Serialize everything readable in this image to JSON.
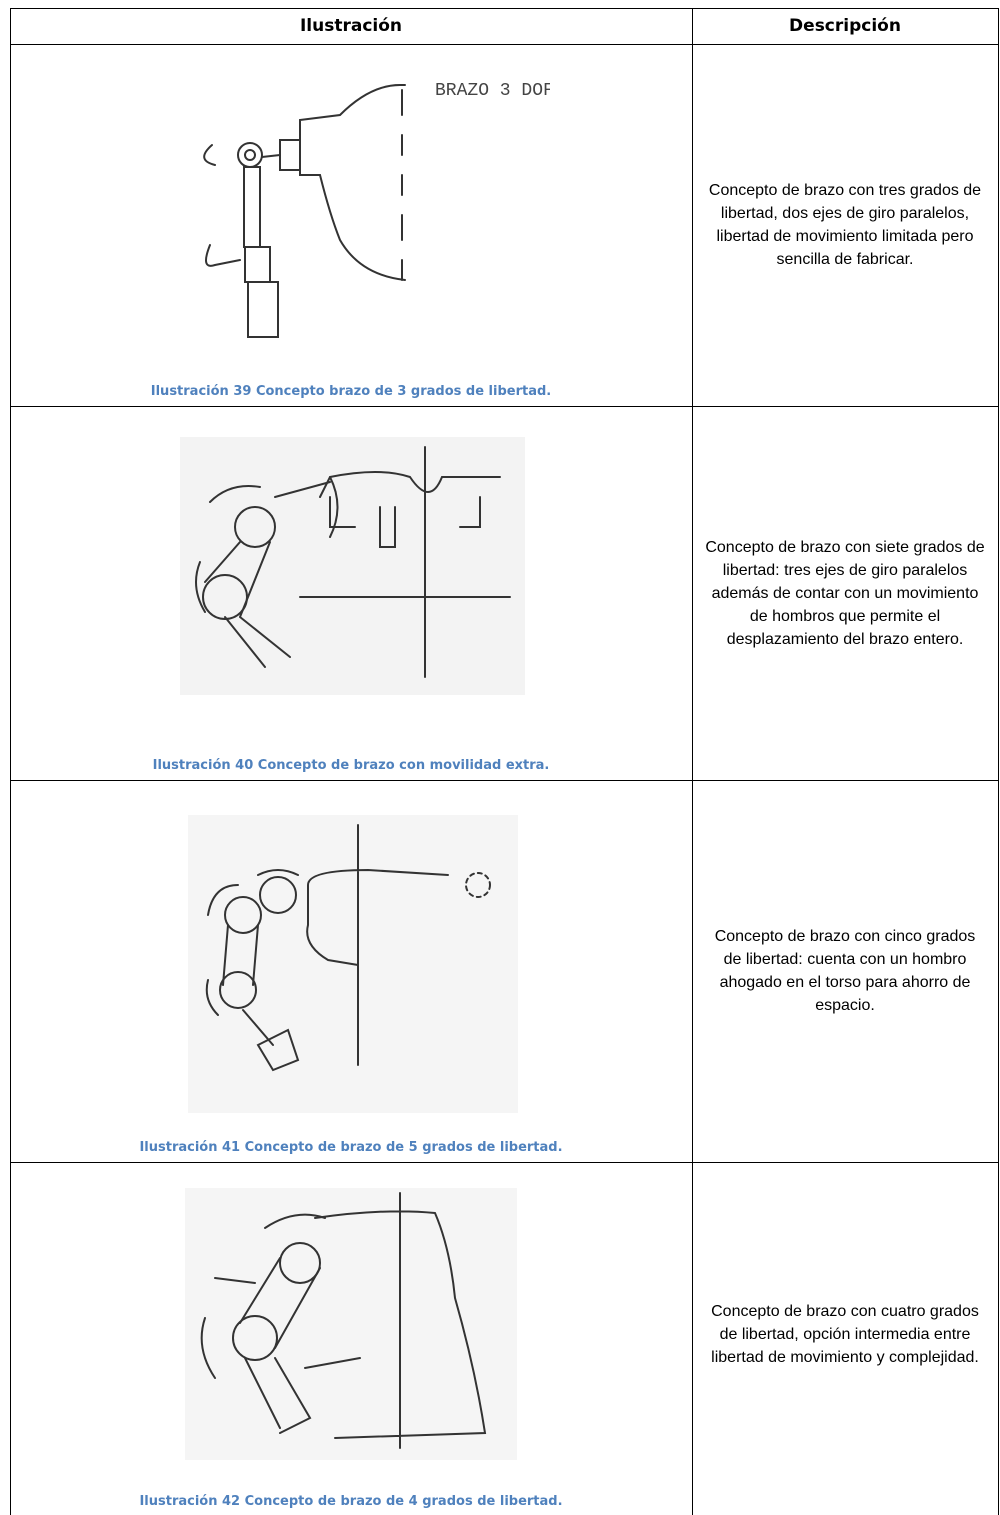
{
  "header": {
    "illustration": "Ilustración",
    "description": "Descripción"
  },
  "rows": [
    {
      "caption": "Ilustración 39 Concepto brazo de 3 grados de libertad.",
      "description": "Concepto de brazo con tres grados de libertad, dos ejes de giro paralelos, libertad de movimiento limitada pero sencilla de fabricar.",
      "sketch_note": "BRAZO 3 DOF"
    },
    {
      "caption": "Ilustración 40 Concepto de brazo con movilidad extra.",
      "description": "Concepto de brazo con siete grados de libertad: tres ejes de giro paralelos además de contar con un movimiento de hombros que permite el desplazamiento del brazo entero."
    },
    {
      "caption": "Ilustración 41 Concepto de brazo de 5 grados de libertad.",
      "description": "Concepto de brazo con cinco grados de libertad: cuenta con un hombro ahogado en el torso para ahorro de espacio."
    },
    {
      "caption": "Ilustración 42 Concepto de brazo de 4 grados de libertad.",
      "description": "Concepto de brazo con cuatro grados de libertad, opción intermedia entre libertad de movimiento y complejidad."
    }
  ]
}
